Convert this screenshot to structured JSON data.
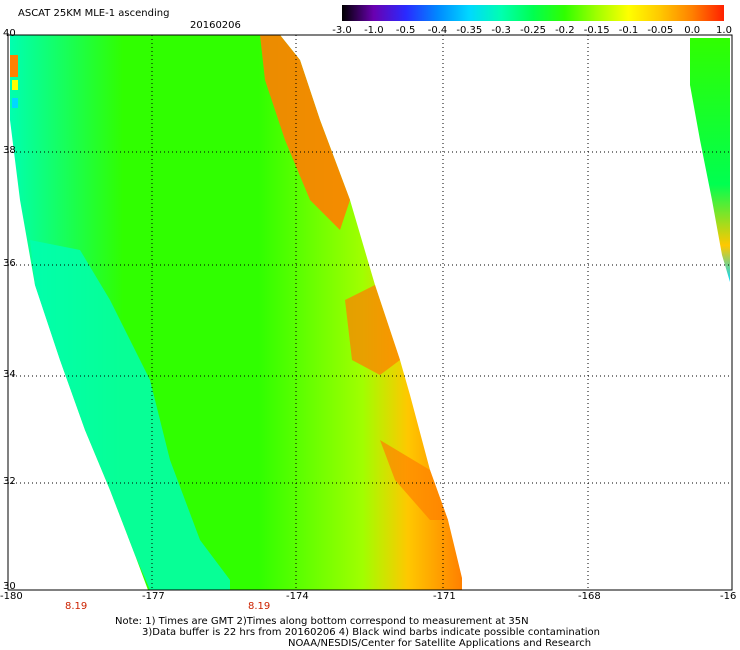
{
  "title": "ASCAT 25KM MLE-1 ascending",
  "date": "20160206",
  "colorbar": {
    "ticks": [
      "-3.0",
      "-1.0",
      "-0.5",
      "-0.4",
      "-0.35",
      "-0.3",
      "-0.25",
      "-0.2",
      "-0.15",
      "-0.1",
      "-0.05",
      "0.0",
      "1.0"
    ],
    "colors": [
      "#000000",
      "#6a00b0",
      "#2a2aff",
      "#0088ff",
      "#00d8ff",
      "#00ffb0",
      "#00ff50",
      "#30ff00",
      "#a0ff00",
      "#ffff00",
      "#ffc800",
      "#ff8000",
      "#ff2000"
    ]
  },
  "latitudes": [
    "40",
    "38",
    "36",
    "34",
    "32",
    "30"
  ],
  "longitudes": [
    "-180",
    "-177",
    "-174",
    "-171",
    "-168",
    "-16"
  ],
  "times": [
    "8.19",
    "8.19"
  ],
  "notes": [
    "Note: 1) Times are GMT 2)Times along bottom correspond to measurement at 35N",
    "3)Data buffer is 22 hrs from 20160206 4) Black wind barbs indicate possible contamination",
    "NOAA/NESDIS/Center for Satellite Applications and Research"
  ]
}
